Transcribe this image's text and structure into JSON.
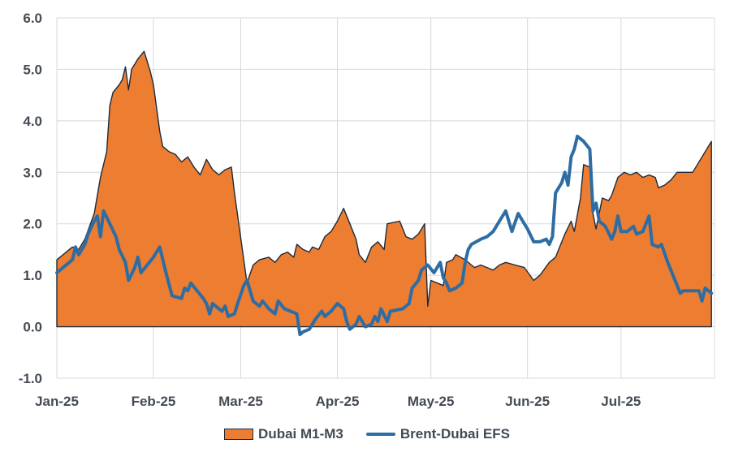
{
  "chart_data": {
    "type": "area",
    "title": "",
    "xlabel": "",
    "ylabel": "",
    "ylim": [
      -1.0,
      6.0
    ],
    "yticks": [
      "6.0",
      "5.0",
      "4.0",
      "3.0",
      "2.0",
      "1.0",
      "0.0",
      "-1.0"
    ],
    "x_range": [
      "2025-01-01",
      "2025-07-31"
    ],
    "xticks": [
      {
        "date": "2025-01-01",
        "label": "Jan-25"
      },
      {
        "date": "2025-02-01",
        "label": "Feb-25"
      },
      {
        "date": "2025-03-01",
        "label": "Mar-25"
      },
      {
        "date": "2025-04-01",
        "label": "Apr-25"
      },
      {
        "date": "2025-05-01",
        "label": "May-25"
      },
      {
        "date": "2025-06-01",
        "label": "Jun-25"
      },
      {
        "date": "2025-07-01",
        "label": "Jul-25"
      }
    ],
    "grid": true,
    "legend_position": "bottom",
    "series": [
      {
        "name": "Dubai M1-M3",
        "type": "area",
        "color": "#ED7D31",
        "edge_color": "#1d2b3a",
        "points": [
          [
            "2025-01-01",
            1.3
          ],
          [
            "2025-01-03",
            1.4
          ],
          [
            "2025-01-06",
            1.55
          ],
          [
            "2025-01-08",
            1.5
          ],
          [
            "2025-01-10",
            1.7
          ],
          [
            "2025-01-13",
            2.2
          ],
          [
            "2025-01-15",
            2.9
          ],
          [
            "2025-01-17",
            3.4
          ],
          [
            "2025-01-18",
            4.3
          ],
          [
            "2025-01-19",
            4.55
          ],
          [
            "2025-01-21",
            4.7
          ],
          [
            "2025-01-22",
            4.8
          ],
          [
            "2025-01-23",
            5.05
          ],
          [
            "2025-01-24",
            4.6
          ],
          [
            "2025-01-25",
            5.0
          ],
          [
            "2025-01-27",
            5.2
          ],
          [
            "2025-01-29",
            5.35
          ],
          [
            "2025-01-31",
            4.95
          ],
          [
            "2025-02-01",
            4.7
          ],
          [
            "2025-02-03",
            3.8
          ],
          [
            "2025-02-04",
            3.5
          ],
          [
            "2025-02-05",
            3.45
          ],
          [
            "2025-02-06",
            3.4
          ],
          [
            "2025-02-08",
            3.35
          ],
          [
            "2025-02-10",
            3.2
          ],
          [
            "2025-02-12",
            3.3
          ],
          [
            "2025-02-14",
            3.1
          ],
          [
            "2025-02-16",
            2.95
          ],
          [
            "2025-02-18",
            3.25
          ],
          [
            "2025-02-20",
            3.05
          ],
          [
            "2025-02-22",
            2.95
          ],
          [
            "2025-02-24",
            3.05
          ],
          [
            "2025-02-26",
            3.1
          ],
          [
            "2025-02-27",
            2.6
          ],
          [
            "2025-03-03",
            0.85
          ],
          [
            "2025-03-05",
            1.2
          ],
          [
            "2025-03-07",
            1.3
          ],
          [
            "2025-03-10",
            1.35
          ],
          [
            "2025-03-12",
            1.25
          ],
          [
            "2025-03-14",
            1.4
          ],
          [
            "2025-03-16",
            1.45
          ],
          [
            "2025-03-18",
            1.35
          ],
          [
            "2025-03-19",
            1.6
          ],
          [
            "2025-03-21",
            1.5
          ],
          [
            "2025-03-23",
            1.45
          ],
          [
            "2025-03-24",
            1.55
          ],
          [
            "2025-03-26",
            1.5
          ],
          [
            "2025-03-28",
            1.75
          ],
          [
            "2025-03-30",
            1.85
          ],
          [
            "2025-04-01",
            2.05
          ],
          [
            "2025-04-03",
            2.3
          ],
          [
            "2025-04-05",
            2.0
          ],
          [
            "2025-04-07",
            1.7
          ],
          [
            "2025-04-08",
            1.4
          ],
          [
            "2025-04-10",
            1.25
          ],
          [
            "2025-04-12",
            1.55
          ],
          [
            "2025-04-14",
            1.65
          ],
          [
            "2025-04-16",
            1.5
          ],
          [
            "2025-04-17",
            2.0
          ],
          [
            "2025-04-21",
            2.05
          ],
          [
            "2025-04-23",
            1.75
          ],
          [
            "2025-04-25",
            1.7
          ],
          [
            "2025-04-27",
            1.8
          ],
          [
            "2025-04-29",
            2.0
          ],
          [
            "2025-04-30",
            0.4
          ],
          [
            "2025-05-01",
            0.9
          ],
          [
            "2025-05-05",
            0.8
          ],
          [
            "2025-05-06",
            1.25
          ],
          [
            "2025-05-08",
            1.3
          ],
          [
            "2025-05-09",
            1.4
          ],
          [
            "2025-05-12",
            1.3
          ],
          [
            "2025-05-14",
            1.2
          ],
          [
            "2025-05-15",
            1.15
          ],
          [
            "2025-05-17",
            1.2
          ],
          [
            "2025-05-19",
            1.15
          ],
          [
            "2025-05-21",
            1.1
          ],
          [
            "2025-05-23",
            1.2
          ],
          [
            "2025-05-25",
            1.25
          ],
          [
            "2025-05-28",
            1.2
          ],
          [
            "2025-05-31",
            1.15
          ],
          [
            "2025-06-03",
            0.9
          ],
          [
            "2025-06-05",
            1.0
          ],
          [
            "2025-06-08",
            1.25
          ],
          [
            "2025-06-10",
            1.35
          ],
          [
            "2025-06-13",
            1.8
          ],
          [
            "2025-06-15",
            2.05
          ],
          [
            "2025-06-16",
            1.85
          ],
          [
            "2025-06-18",
            2.5
          ],
          [
            "2025-06-19",
            3.15
          ],
          [
            "2025-06-21",
            3.1
          ],
          [
            "2025-06-22",
            2.2
          ],
          [
            "2025-06-23",
            1.9
          ],
          [
            "2025-06-25",
            2.5
          ],
          [
            "2025-06-27",
            2.45
          ],
          [
            "2025-06-28",
            2.55
          ],
          [
            "2025-06-30",
            2.9
          ],
          [
            "2025-07-02",
            3.0
          ],
          [
            "2025-07-04",
            2.95
          ],
          [
            "2025-07-06",
            3.0
          ],
          [
            "2025-07-08",
            2.9
          ],
          [
            "2025-07-10",
            2.95
          ],
          [
            "2025-07-12",
            2.9
          ],
          [
            "2025-07-13",
            2.7
          ],
          [
            "2025-07-15",
            2.75
          ],
          [
            "2025-07-17",
            2.85
          ],
          [
            "2025-07-19",
            3.0
          ],
          [
            "2025-07-22",
            3.0
          ],
          [
            "2025-07-24",
            3.0
          ],
          [
            "2025-07-27",
            3.3
          ],
          [
            "2025-07-30",
            3.6
          ]
        ]
      },
      {
        "name": "Brent-Dubai EFS",
        "type": "line",
        "color": "#2E6DA4",
        "points": [
          [
            "2025-01-01",
            1.05
          ],
          [
            "2025-01-03",
            1.15
          ],
          [
            "2025-01-06",
            1.3
          ],
          [
            "2025-01-07",
            1.55
          ],
          [
            "2025-01-08",
            1.4
          ],
          [
            "2025-01-10",
            1.6
          ],
          [
            "2025-01-11",
            1.8
          ],
          [
            "2025-01-13",
            2.05
          ],
          [
            "2025-01-14",
            2.15
          ],
          [
            "2025-01-15",
            1.75
          ],
          [
            "2025-01-16",
            2.25
          ],
          [
            "2025-01-18",
            2.0
          ],
          [
            "2025-01-20",
            1.75
          ],
          [
            "2025-01-21",
            1.5
          ],
          [
            "2025-01-23",
            1.25
          ],
          [
            "2025-01-24",
            0.9
          ],
          [
            "2025-01-26",
            1.15
          ],
          [
            "2025-01-27",
            1.35
          ],
          [
            "2025-01-28",
            1.05
          ],
          [
            "2025-01-30",
            1.2
          ],
          [
            "2025-02-01",
            1.35
          ],
          [
            "2025-02-03",
            1.55
          ],
          [
            "2025-02-05",
            1.05
          ],
          [
            "2025-02-07",
            0.6
          ],
          [
            "2025-02-10",
            0.55
          ],
          [
            "2025-02-11",
            0.75
          ],
          [
            "2025-02-12",
            0.7
          ],
          [
            "2025-02-13",
            0.85
          ],
          [
            "2025-02-15",
            0.7
          ],
          [
            "2025-02-17",
            0.55
          ],
          [
            "2025-02-18",
            0.45
          ],
          [
            "2025-02-19",
            0.25
          ],
          [
            "2025-02-20",
            0.45
          ],
          [
            "2025-02-22",
            0.35
          ],
          [
            "2025-02-23",
            0.3
          ],
          [
            "2025-02-24",
            0.4
          ],
          [
            "2025-02-25",
            0.2
          ],
          [
            "2025-02-27",
            0.25
          ],
          [
            "2025-02-28",
            0.45
          ],
          [
            "2025-03-02",
            0.8
          ],
          [
            "2025-03-03",
            0.9
          ],
          [
            "2025-03-05",
            0.5
          ],
          [
            "2025-03-07",
            0.4
          ],
          [
            "2025-03-08",
            0.5
          ],
          [
            "2025-03-10",
            0.35
          ],
          [
            "2025-03-12",
            0.25
          ],
          [
            "2025-03-13",
            0.5
          ],
          [
            "2025-03-15",
            0.35
          ],
          [
            "2025-03-17",
            0.3
          ],
          [
            "2025-03-19",
            0.25
          ],
          [
            "2025-03-20",
            -0.15
          ],
          [
            "2025-03-21",
            -0.1
          ],
          [
            "2025-03-23",
            -0.05
          ],
          [
            "2025-03-25",
            0.15
          ],
          [
            "2025-03-27",
            0.3
          ],
          [
            "2025-03-28",
            0.2
          ],
          [
            "2025-03-30",
            0.3
          ],
          [
            "2025-04-01",
            0.45
          ],
          [
            "2025-04-03",
            0.35
          ],
          [
            "2025-04-04",
            0.1
          ],
          [
            "2025-04-05",
            -0.05
          ],
          [
            "2025-04-07",
            0.05
          ],
          [
            "2025-04-08",
            0.2
          ],
          [
            "2025-04-10",
            0.0
          ],
          [
            "2025-04-12",
            0.05
          ],
          [
            "2025-04-13",
            0.2
          ],
          [
            "2025-04-14",
            0.1
          ],
          [
            "2025-04-15",
            0.35
          ],
          [
            "2025-04-17",
            0.1
          ],
          [
            "2025-04-18",
            0.3
          ],
          [
            "2025-04-22",
            0.35
          ],
          [
            "2025-04-24",
            0.45
          ],
          [
            "2025-04-25",
            0.75
          ],
          [
            "2025-04-27",
            0.9
          ],
          [
            "2025-04-28",
            1.1
          ],
          [
            "2025-04-30",
            1.2
          ],
          [
            "2025-05-02",
            1.05
          ],
          [
            "2025-05-04",
            1.25
          ],
          [
            "2025-05-05",
            0.95
          ],
          [
            "2025-05-06",
            0.85
          ],
          [
            "2025-05-07",
            0.7
          ],
          [
            "2025-05-09",
            0.75
          ],
          [
            "2025-05-11",
            0.85
          ],
          [
            "2025-05-12",
            1.25
          ],
          [
            "2025-05-13",
            1.5
          ],
          [
            "2025-05-14",
            1.6
          ],
          [
            "2025-05-17",
            1.7
          ],
          [
            "2025-05-19",
            1.75
          ],
          [
            "2025-05-21",
            1.85
          ],
          [
            "2025-05-23",
            2.05
          ],
          [
            "2025-05-25",
            2.25
          ],
          [
            "2025-05-27",
            1.85
          ],
          [
            "2025-05-29",
            2.2
          ],
          [
            "2025-05-30",
            2.1
          ],
          [
            "2025-06-01",
            1.9
          ],
          [
            "2025-06-03",
            1.65
          ],
          [
            "2025-06-05",
            1.65
          ],
          [
            "2025-06-07",
            1.7
          ],
          [
            "2025-06-08",
            1.6
          ],
          [
            "2025-06-09",
            1.75
          ],
          [
            "2025-06-10",
            2.6
          ],
          [
            "2025-06-12",
            2.8
          ],
          [
            "2025-06-13",
            3.0
          ],
          [
            "2025-06-14",
            2.75
          ],
          [
            "2025-06-15",
            3.3
          ],
          [
            "2025-06-16",
            3.45
          ],
          [
            "2025-06-17",
            3.7
          ],
          [
            "2025-06-19",
            3.6
          ],
          [
            "2025-06-21",
            3.45
          ],
          [
            "2025-06-22",
            2.25
          ],
          [
            "2025-06-23",
            2.4
          ],
          [
            "2025-06-24",
            2.05
          ],
          [
            "2025-06-26",
            1.95
          ],
          [
            "2025-06-28",
            1.7
          ],
          [
            "2025-06-29",
            1.85
          ],
          [
            "2025-06-30",
            2.15
          ],
          [
            "2025-07-01",
            1.85
          ],
          [
            "2025-07-03",
            1.85
          ],
          [
            "2025-07-05",
            1.95
          ],
          [
            "2025-07-06",
            1.8
          ],
          [
            "2025-07-08",
            1.85
          ],
          [
            "2025-07-10",
            2.15
          ],
          [
            "2025-07-11",
            1.6
          ],
          [
            "2025-07-13",
            1.55
          ],
          [
            "2025-07-14",
            1.6
          ],
          [
            "2025-07-16",
            1.25
          ],
          [
            "2025-07-18",
            0.95
          ],
          [
            "2025-07-20",
            0.65
          ],
          [
            "2025-07-21",
            0.7
          ],
          [
            "2025-07-24",
            0.7
          ],
          [
            "2025-07-26",
            0.7
          ],
          [
            "2025-07-27",
            0.5
          ],
          [
            "2025-07-28",
            0.75
          ],
          [
            "2025-07-30",
            0.65
          ]
        ]
      }
    ]
  }
}
